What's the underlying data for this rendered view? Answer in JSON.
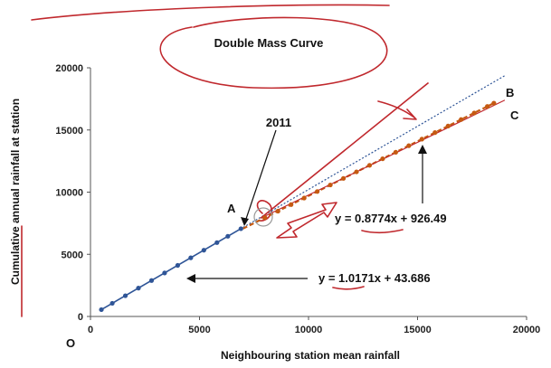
{
  "chart_data": {
    "type": "scatter",
    "title": "Double Mass Curve",
    "xlabel": "Neighbouring station mean rainfall",
    "ylabel": "Cumulative annual rainfall at station",
    "xlim": [
      0,
      20000
    ],
    "ylim": [
      0,
      20000
    ],
    "xticks": [
      0,
      5000,
      10000,
      15000,
      20000
    ],
    "yticks": [
      0,
      5000,
      10000,
      15000,
      20000
    ],
    "grid": false,
    "legend": "none",
    "series": [
      {
        "color": "#2f5597",
        "x": [
          500,
          1000,
          1600,
          2200,
          2800,
          3400,
          4000,
          4600,
          5200,
          5800,
          6300,
          6900
        ],
        "y": [
          550,
          1060,
          1670,
          2280,
          2890,
          3500,
          4110,
          4720,
          5330,
          5940,
          6450,
          7060
        ]
      },
      {
        "color": "#c55a11",
        "x": [
          8000,
          8600,
          9200,
          9800,
          10400,
          11000,
          11600,
          12200,
          12800,
          13400,
          14000,
          14600,
          15200,
          15800,
          16400,
          17000,
          17600,
          18200,
          18500
        ],
        "y": [
          7946,
          8472,
          8998,
          9525,
          10051,
          10578,
          11104,
          11631,
          12157,
          12684,
          13210,
          13737,
          14263,
          14790,
          15316,
          15842,
          16369,
          16895,
          17158
        ]
      }
    ],
    "trendlines": [
      {
        "equation": "y = 1.0171x + 43.686",
        "slope": 1.0171,
        "intercept": 43.686,
        "x_range": [
          500,
          6900
        ]
      },
      {
        "equation": "y = 0.8774x + 926.49",
        "slope": 0.8774,
        "intercept": 926.49,
        "x_range": [
          7000,
          18500
        ]
      }
    ],
    "projection_B": {
      "slope": 1.0171,
      "intercept": 43.686,
      "x_range": [
        7000,
        19000
      ]
    },
    "annotations": {
      "year": "2011",
      "point_a": "A",
      "point_b": "B",
      "point_c": "C",
      "origin": "O"
    },
    "colors": {
      "ink": "#c0282d",
      "axis": "#555555",
      "blue_series": "#2f5597",
      "orange_series": "#c55a11"
    }
  }
}
